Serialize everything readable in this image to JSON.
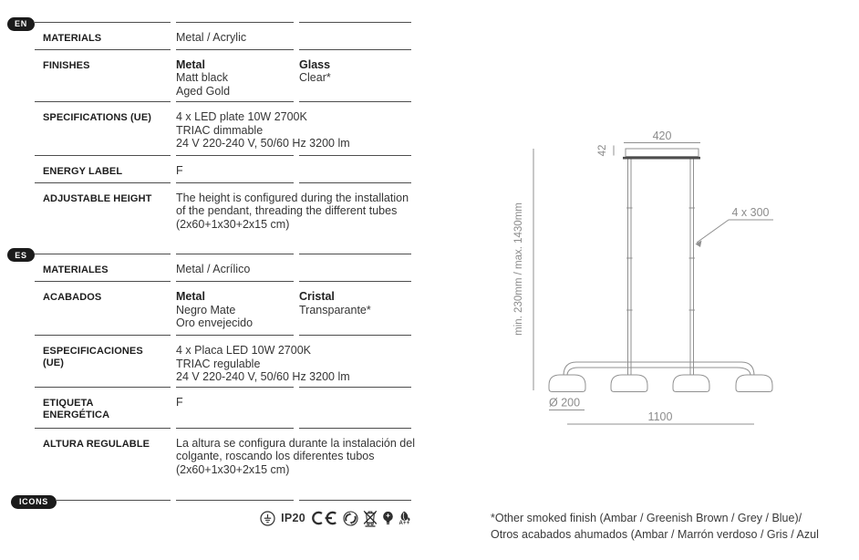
{
  "colors": {
    "pill_bg": "#1b1b1b",
    "pill_text": "#ffffff",
    "rule": "#4d4d4d",
    "label_text": "#1d1d1d",
    "value_text": "#353535",
    "drawing_stroke": "#909090",
    "drawing_text": "#8c8c8c",
    "canopy_plate": "#4d4d4d",
    "icon_color": "#2f2f2f"
  },
  "sections": {
    "en": {
      "tag": "EN",
      "rows": [
        {
          "label": [
            "MATERIALS"
          ],
          "v1": {
            "lines": [
              "Metal / Acrylic"
            ]
          }
        },
        {
          "label": [
            "FINISHES"
          ],
          "v1": {
            "lines": [
              "Metal",
              "Matt black",
              "Aged Gold"
            ],
            "lead_bold": true
          },
          "v2": {
            "lines": [
              "Glass",
              "Clear*"
            ],
            "lead_bold": true
          }
        },
        {
          "label": [
            "SPECIFICATIONS (UE)"
          ],
          "v1": {
            "lines": [
              "4 x LED plate 10W 2700K",
              "TRIAC dimmable",
              "24 V 220-240 V, 50/60 Hz 3200 lm"
            ]
          }
        },
        {
          "label": [
            "ENERGY LABEL"
          ],
          "v1": {
            "lines": [
              "F"
            ]
          }
        },
        {
          "label": [
            "ADJUSTABLE HEIGHT"
          ],
          "v1": {
            "lines": [
              "The height is configured during the installation of the pendant, threading the different tubes (2x60+1x30+2x15 cm)"
            ],
            "wrap": true
          }
        }
      ]
    },
    "es": {
      "tag": "ES",
      "rows": [
        {
          "label": [
            "MATERIALES"
          ],
          "v1": {
            "lines": [
              "Metal / Acrílico"
            ]
          }
        },
        {
          "label": [
            "ACABADOS"
          ],
          "v1": {
            "lines": [
              "Metal",
              "Negro Mate",
              "Oro envejecido"
            ],
            "lead_bold": true
          },
          "v2": {
            "lines": [
              "Cristal",
              "Transparante*"
            ],
            "lead_bold": true
          }
        },
        {
          "label": [
            "ESPECIFICACIONES",
            "(UE)"
          ],
          "v1": {
            "lines": [
              "4 x Placa LED 10W 2700K",
              "TRIAC regulable",
              "24 V 220-240 V, 50/60 Hz 3200 lm"
            ]
          }
        },
        {
          "label": [
            "ETIQUETA",
            "ENERGÉTICA"
          ],
          "v1": {
            "lines": [
              "F"
            ]
          }
        },
        {
          "label": [
            "ALTURA REGULABLE"
          ],
          "v1": {
            "lines": [
              "La altura se configura durante la instalación del colgante, roscando los diferentes tubos (2x60+1x30+2x15 cm)"
            ],
            "wrap": true
          }
        }
      ]
    },
    "icons": {
      "tag": "ICONS",
      "ip_rating": "IP20",
      "energy_class": "A++",
      "items": [
        "class-i-earth",
        "ip-rating",
        "ce-mark",
        "green-dot-recycling",
        "weee-crossed-bin",
        "led-bulb",
        "energy-class-leaf"
      ]
    }
  },
  "drawing": {
    "dim_top_width": "420",
    "dim_canopy_height": "42",
    "dim_tube_segments": "4 x 300",
    "dim_height_range": "min. 230mm / max. 1430mm",
    "dim_shade_diameter": "Ø 200",
    "dim_total_width": "1100"
  },
  "footnote": {
    "line1": "*Other smoked finish (Ambar / Greenish Brown / Grey / Blue)/",
    "line2": "Otros acabados ahumados (Ambar / Marrón verdoso / Gris / Azul"
  }
}
